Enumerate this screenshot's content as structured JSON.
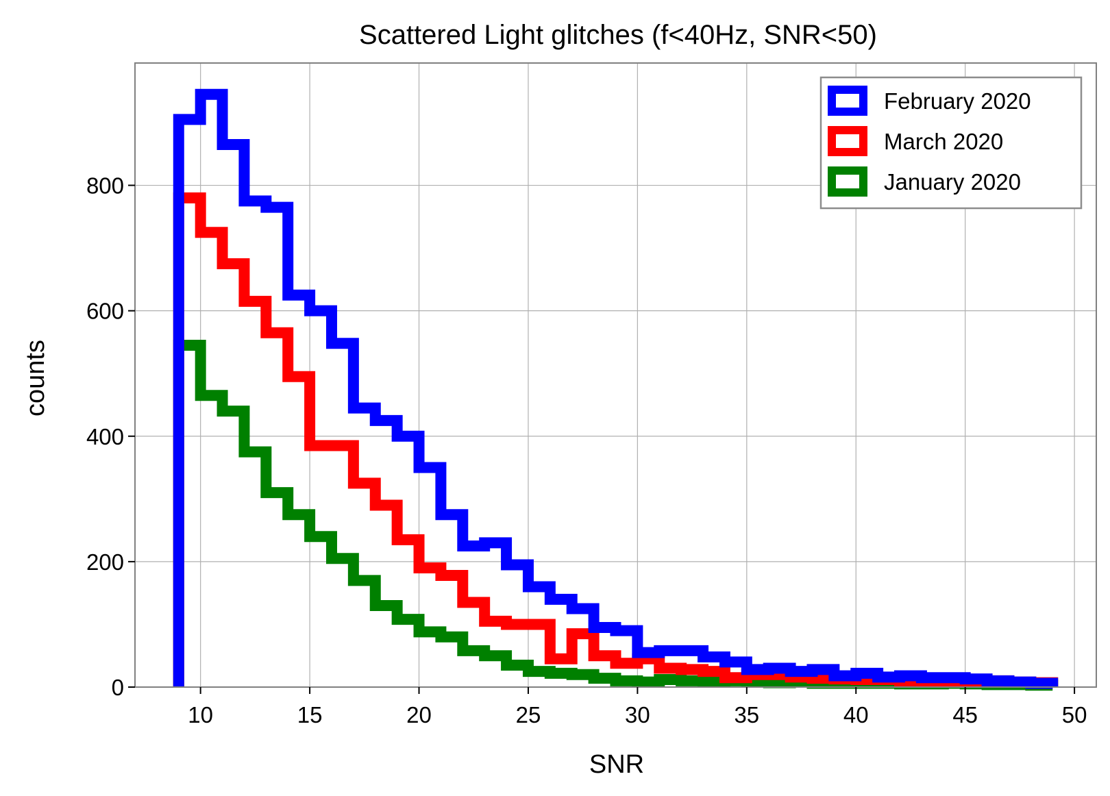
{
  "chart_data": {
    "type": "histogram-step",
    "title": "Scattered Light glitches (f<40Hz, SNR<50)",
    "xlabel": "SNR",
    "ylabel": "counts",
    "xlim": [
      7,
      51
    ],
    "ylim": [
      0,
      995
    ],
    "xticks": [
      10,
      15,
      20,
      25,
      30,
      35,
      40,
      45,
      50
    ],
    "yticks": [
      0,
      200,
      400,
      600,
      800
    ],
    "grid": true,
    "legend_position": "top-right",
    "bin_edges": [
      9,
      10,
      11,
      12,
      13,
      14,
      15,
      16,
      17,
      18,
      19,
      20,
      21,
      22,
      23,
      24,
      25,
      26,
      27,
      28,
      29,
      30,
      31,
      32,
      33,
      34,
      35,
      36,
      37,
      38,
      39,
      40,
      41,
      42,
      43,
      44,
      45,
      46,
      47,
      48,
      49
    ],
    "series": [
      {
        "name": "February 2020",
        "color": "#0000ff",
        "values": [
          905,
          945,
          865,
          775,
          765,
          625,
          600,
          548,
          445,
          425,
          400,
          350,
          275,
          225,
          230,
          195,
          160,
          140,
          125,
          95,
          90,
          55,
          58,
          58,
          48,
          40,
          28,
          30,
          25,
          28,
          18,
          22,
          16,
          18,
          15,
          15,
          13,
          10,
          8,
          6
        ]
      },
      {
        "name": "March 2020",
        "color": "#ff0000",
        "values": [
          780,
          725,
          675,
          615,
          565,
          495,
          385,
          385,
          325,
          290,
          235,
          190,
          178,
          135,
          105,
          100,
          100,
          45,
          85,
          50,
          38,
          45,
          30,
          28,
          25,
          15,
          20,
          20,
          16,
          14,
          13,
          12,
          12,
          10,
          9,
          8,
          9,
          10,
          8,
          7
        ]
      },
      {
        "name": "January 2020",
        "color": "#008000",
        "values": [
          545,
          465,
          440,
          375,
          310,
          275,
          240,
          205,
          170,
          130,
          108,
          88,
          80,
          58,
          50,
          35,
          25,
          22,
          20,
          14,
          10,
          8,
          12,
          10,
          8,
          10,
          8,
          7,
          8,
          6,
          6,
          6,
          6,
          5,
          5,
          6,
          5,
          4,
          4,
          3
        ]
      }
    ]
  }
}
